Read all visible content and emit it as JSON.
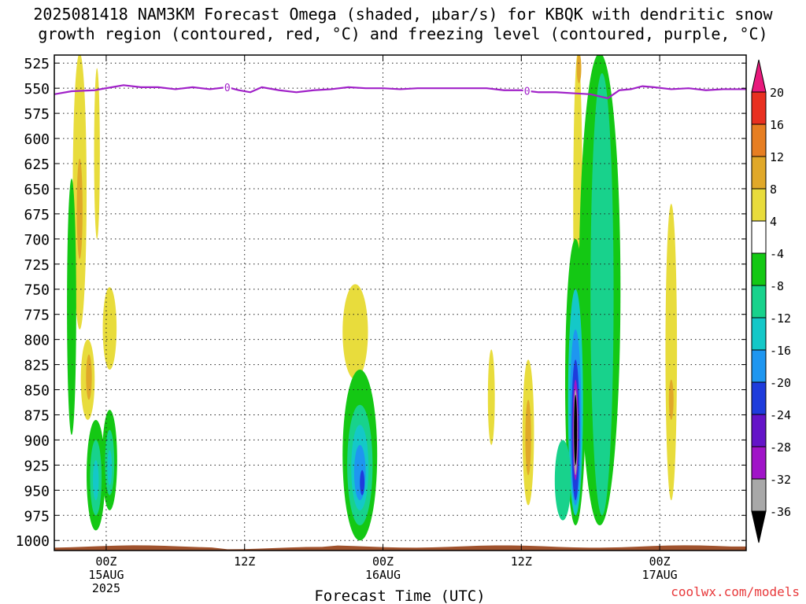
{
  "title_line1": "2025081418 NAM3KM Forecast Omega (shaded, μbar/s) for KBQK with dendritic snow",
  "title_line2": "growth region (contoured, red, °C) and freezing level (contoured, purple, °C)",
  "credit": "coolwx.com/models",
  "chart_data": {
    "type": "heatmap",
    "title": "2025081418 NAM3KM Forecast Omega (shaded, μbar/s) for KBQK with dendritic snow growth region (contoured, red, °C) and freezing level (contoured, purple, °C)",
    "xlabel": "Forecast Time (UTC)",
    "ylabel": "",
    "x_unit": "hours since 2025-08-14 18Z",
    "xlim": [
      1.5,
      61.5
    ],
    "y_unit": "hPa",
    "ylim": [
      1010,
      517
    ],
    "y_ticks": [
      525,
      550,
      575,
      600,
      625,
      650,
      675,
      700,
      725,
      750,
      775,
      800,
      825,
      850,
      875,
      900,
      925,
      950,
      975,
      1000
    ],
    "x_ticks": [
      {
        "x": 6,
        "lines": [
          "00Z",
          "15AUG",
          "2025"
        ]
      },
      {
        "x": 18,
        "lines": [
          "12Z"
        ]
      },
      {
        "x": 30,
        "lines": [
          "00Z",
          "16AUG"
        ]
      },
      {
        "x": 42,
        "lines": [
          "12Z"
        ]
      },
      {
        "x": 54,
        "lines": [
          "00Z",
          "17AUG"
        ]
      }
    ],
    "grid": true,
    "colorbar": {
      "labels": [
        "20",
        "16",
        "12",
        "8",
        "4",
        "-4",
        "-8",
        "-12",
        "-16",
        "-20",
        "-24",
        "-28",
        "-32",
        "-36"
      ],
      "colors": [
        "#e8197c",
        "#e83020",
        "#e67e22",
        "#e0a829",
        "#e8dc3c",
        "#ffffff",
        "#14c814",
        "#18d28c",
        "#14c8c8",
        "#1e96f0",
        "#1e3cdc",
        "#6414c8",
        "#a014c8",
        "#a8a8a8",
        "#000000"
      ]
    },
    "freezing_level": {
      "label": "0",
      "color": "#a020c8",
      "x": [
        1.5,
        3,
        5,
        6.5,
        7.5,
        9,
        10.5,
        12,
        13.5,
        15,
        16.5,
        17.5,
        18.5,
        19.5,
        21,
        22.5,
        24,
        25.5,
        27,
        28.5,
        30,
        31.5,
        33,
        34.5,
        36,
        37.5,
        39,
        40.5,
        42,
        43.5,
        45,
        46.5,
        48,
        49.5,
        50.5,
        51.5,
        52.5,
        53.5,
        55,
        56.5,
        58,
        59.5,
        61.5
      ],
      "y": [
        556,
        553,
        552,
        549,
        547,
        549,
        549,
        551,
        549,
        551,
        549,
        552,
        554,
        549,
        552,
        554,
        552,
        551,
        549,
        550,
        550,
        551,
        550,
        550,
        550,
        550,
        550,
        552,
        552,
        554,
        554,
        555,
        556,
        560,
        552,
        551,
        548,
        549,
        551,
        550,
        552,
        551,
        551
      ],
      "label_x": [
        16.5,
        42.5
      ]
    },
    "terrain_color": "#a0522d",
    "terrain_top_hpa": 1006,
    "omega_cells": [
      {
        "x": 3.7,
        "p": [
          515,
          790
        ],
        "w": 1.2,
        "v": 6
      },
      {
        "x": 3.7,
        "p": [
          620,
          720
        ],
        "w": 0.5,
        "v": 10
      },
      {
        "x": 5.2,
        "p": [
          530,
          700
        ],
        "w": 0.5,
        "v": 5
      },
      {
        "x": 4.4,
        "p": [
          800,
          880
        ],
        "w": 1.2,
        "v": 6
      },
      {
        "x": 4.5,
        "p": [
          815,
          860
        ],
        "w": 0.5,
        "v": 10
      },
      {
        "x": 6.3,
        "p": [
          748,
          830
        ],
        "w": 1.2,
        "v": 6
      },
      {
        "x": 3.0,
        "p": [
          640,
          895
        ],
        "w": 0.8,
        "v": -6
      },
      {
        "x": 5.1,
        "p": [
          880,
          990
        ],
        "w": 1.6,
        "v": -7
      },
      {
        "x": 5.1,
        "p": [
          900,
          975
        ],
        "w": 1.0,
        "v": -10
      },
      {
        "x": 5.1,
        "p": [
          920,
          960
        ],
        "w": 0.5,
        "v": -14
      },
      {
        "x": 6.3,
        "p": [
          870,
          970
        ],
        "w": 1.3,
        "v": -7
      },
      {
        "x": 6.3,
        "p": [
          890,
          955
        ],
        "w": 0.8,
        "v": -10
      },
      {
        "x": 6.3,
        "p": [
          910,
          945
        ],
        "w": 0.4,
        "v": -14
      },
      {
        "x": 27.6,
        "p": [
          745,
          840
        ],
        "w": 2.2,
        "v": 6
      },
      {
        "x": 28.0,
        "p": [
          830,
          1000
        ],
        "w": 3.0,
        "v": -7
      },
      {
        "x": 28.0,
        "p": [
          865,
          985
        ],
        "w": 2.2,
        "v": -10
      },
      {
        "x": 28.0,
        "p": [
          885,
          970
        ],
        "w": 1.5,
        "v": -14
      },
      {
        "x": 28.0,
        "p": [
          905,
          960
        ],
        "w": 1.0,
        "v": -18
      },
      {
        "x": 28.2,
        "p": [
          930,
          955
        ],
        "w": 0.4,
        "v": -22
      },
      {
        "x": 39.4,
        "p": [
          810,
          905
        ],
        "w": 0.6,
        "v": 5
      },
      {
        "x": 42.6,
        "p": [
          820,
          965
        ],
        "w": 1.0,
        "v": 6
      },
      {
        "x": 42.6,
        "p": [
          860,
          935
        ],
        "w": 0.5,
        "v": 10
      },
      {
        "x": 46.9,
        "p": [
          515,
          825
        ],
        "w": 0.8,
        "v": 6
      },
      {
        "x": 47.0,
        "p": [
          515,
          545
        ],
        "w": 0.4,
        "v": 10
      },
      {
        "x": 48.2,
        "p": [
          640,
          935
        ],
        "w": 0.8,
        "v": 5
      },
      {
        "x": 48.8,
        "p": [
          515,
          985
        ],
        "w": 3.6,
        "v": -7
      },
      {
        "x": 49.0,
        "p": [
          535,
          975
        ],
        "w": 2.0,
        "v": -10
      },
      {
        "x": 55.0,
        "p": [
          665,
          960
        ],
        "w": 1.0,
        "v": 6
      },
      {
        "x": 55.0,
        "p": [
          840,
          880
        ],
        "w": 0.4,
        "v": 10
      },
      {
        "x": 46.7,
        "p": [
          700,
          985
        ],
        "w": 1.8,
        "v": -7
      },
      {
        "x": 46.7,
        "p": [
          750,
          975
        ],
        "w": 1.3,
        "v": -12
      },
      {
        "x": 46.7,
        "p": [
          790,
          965
        ],
        "w": 1.0,
        "v": -17
      },
      {
        "x": 46.7,
        "p": [
          820,
          960
        ],
        "w": 0.7,
        "v": -22
      },
      {
        "x": 46.7,
        "p": [
          840,
          940
        ],
        "w": 0.5,
        "v": -28
      },
      {
        "x": 46.7,
        "p": [
          850,
          935
        ],
        "w": 0.35,
        "v": -33
      },
      {
        "x": 46.7,
        "p": [
          855,
          925
        ],
        "w": 0.2,
        "v": -40
      },
      {
        "x": 45.6,
        "p": [
          900,
          980
        ],
        "w": 1.4,
        "v": -8
      }
    ]
  }
}
